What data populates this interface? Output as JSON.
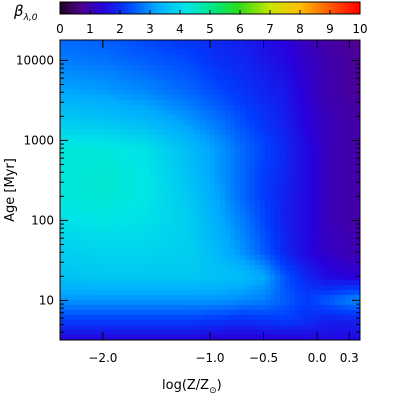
{
  "chart_data": {
    "type": "heatmap",
    "title": "",
    "colorbar": {
      "label_symbol": "β",
      "label_subscript": "λ,0",
      "range": [
        0,
        10
      ],
      "ticks": [
        {
          "value": 0,
          "label": "0"
        },
        {
          "value": 1,
          "label": "1"
        },
        {
          "value": 2,
          "label": "2"
        },
        {
          "value": 3,
          "label": "3"
        },
        {
          "value": 4,
          "label": "4"
        },
        {
          "value": 5,
          "label": "5"
        },
        {
          "value": 6,
          "label": "6"
        },
        {
          "value": 7,
          "label": "7"
        },
        {
          "value": 8,
          "label": "8"
        },
        {
          "value": 9,
          "label": "9"
        },
        {
          "value": 10,
          "label": "10"
        }
      ],
      "colormap": "rainbow (purple–blue–cyan–green–yellow–red)"
    },
    "x_axis": {
      "label_main": "log(Z/Z",
      "label_sub": "⊙",
      "label_close": ")",
      "range": [
        -2.4,
        0.4
      ],
      "ticks": [
        {
          "value": -2.0,
          "label": "−2.0"
        },
        {
          "value": -1.0,
          "label": "−1.0"
        },
        {
          "value": -0.5,
          "label": "−0.5"
        },
        {
          "value": 0.0,
          "label": "0.0"
        },
        {
          "value": 0.3,
          "label": "0.3"
        }
      ]
    },
    "y_axis": {
      "label": "Age [Myr]",
      "scale": "log",
      "range": [
        3.2,
        18000
      ],
      "ticks": [
        {
          "value": 10,
          "label": "10"
        },
        {
          "value": 100,
          "label": "100"
        },
        {
          "value": 1000,
          "label": "1000"
        },
        {
          "value": 10000,
          "label": "10000"
        }
      ]
    },
    "grid_x": [
      -2.4,
      -2.0,
      -1.6,
      -1.2,
      -0.9,
      -0.7,
      -0.5,
      -0.3,
      -0.1,
      0.1,
      0.4
    ],
    "grid_logage": [
      0.5,
      0.75,
      1.0,
      1.3,
      1.6,
      2.0,
      2.3,
      2.6,
      2.9,
      3.2,
      3.6,
      4.0,
      4.26
    ],
    "values": [
      [
        1.4,
        1.4,
        1.4,
        1.4,
        1.3,
        1.3,
        1.3,
        1.3,
        1.4,
        1.5,
        1.5
      ],
      [
        2.2,
        2.2,
        2.2,
        2.2,
        2.1,
        2.0,
        2.1,
        2.2,
        2.0,
        1.8,
        1.8
      ],
      [
        3.0,
        3.0,
        3.0,
        3.0,
        3.0,
        2.9,
        2.8,
        2.5,
        2.2,
        2.5,
        3.0
      ],
      [
        3.6,
        3.7,
        3.7,
        3.7,
        3.6,
        3.5,
        3.2,
        2.4,
        1.9,
        1.5,
        1.3
      ],
      [
        3.8,
        3.9,
        3.9,
        3.8,
        3.4,
        3.0,
        2.5,
        1.9,
        1.5,
        1.2,
        1.0
      ],
      [
        4.1,
        4.2,
        4.1,
        3.8,
        3.2,
        2.8,
        2.3,
        1.8,
        1.5,
        1.1,
        0.9
      ],
      [
        4.3,
        4.4,
        4.2,
        3.7,
        3.1,
        2.6,
        2.2,
        1.8,
        1.5,
        1.1,
        0.9
      ],
      [
        4.3,
        4.4,
        4.2,
        3.6,
        3.0,
        2.6,
        2.2,
        1.9,
        1.5,
        1.1,
        0.9
      ],
      [
        4.3,
        4.3,
        4.1,
        3.5,
        3.0,
        2.6,
        2.3,
        1.9,
        1.5,
        1.1,
        0.9
      ],
      [
        3.8,
        3.7,
        3.5,
        3.1,
        2.7,
        2.4,
        2.1,
        1.8,
        1.4,
        1.1,
        0.9
      ],
      [
        3.2,
        3.1,
        2.9,
        2.6,
        2.3,
        2.1,
        1.9,
        1.7,
        1.3,
        1.0,
        0.8
      ],
      [
        2.8,
        2.7,
        2.5,
        2.3,
        2.0,
        1.9,
        1.7,
        1.5,
        1.2,
        1.0,
        0.8
      ],
      [
        2.6,
        2.5,
        2.3,
        2.1,
        1.9,
        1.8,
        1.6,
        1.4,
        1.1,
        0.9,
        0.7
      ]
    ]
  }
}
